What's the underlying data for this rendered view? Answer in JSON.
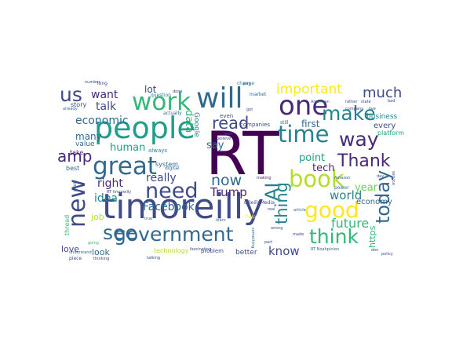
{
  "palette": [
    "#440154",
    "#482878",
    "#3e4a89",
    "#31688e",
    "#26828e",
    "#1f9e89",
    "#35b779",
    "#6ece58",
    "#b5de2b",
    "#fde725"
  ],
  "words": [
    {
      "text": "RT",
      "weight": 100,
      "color": "#440154"
    },
    {
      "text": "timoreilly",
      "weight": 72,
      "color": "#3e4a89"
    },
    {
      "text": "people",
      "weight": 62,
      "color": "#1f9e89"
    },
    {
      "text": "will",
      "weight": 55,
      "color": "#31688e"
    },
    {
      "text": "one",
      "weight": 55,
      "color": "#482878"
    },
    {
      "text": "work",
      "weight": 52,
      "color": "#35b779"
    },
    {
      "text": "new",
      "weight": 50,
      "color": "#3e4a89"
    },
    {
      "text": "great",
      "weight": 50,
      "color": "#31688e"
    },
    {
      "text": "time",
      "weight": 48,
      "color": "#26828e"
    },
    {
      "text": "book",
      "weight": 48,
      "color": "#b5de2b"
    },
    {
      "text": "good",
      "weight": 47,
      "color": "#fde725"
    },
    {
      "text": "need",
      "weight": 46,
      "color": "#3e4a89"
    },
    {
      "text": "government",
      "weight": 45,
      "color": "#31688e"
    },
    {
      "text": "see",
      "weight": 45,
      "color": "#31688e"
    },
    {
      "text": "make",
      "weight": 44,
      "color": "#26828e"
    },
    {
      "text": "way",
      "weight": 44,
      "color": "#482878"
    },
    {
      "text": "think",
      "weight": 43,
      "color": "#35b779"
    },
    {
      "text": "today",
      "weight": 42,
      "color": "#31688e"
    },
    {
      "text": "us",
      "weight": 40,
      "color": "#3e4a89"
    },
    {
      "text": "AI",
      "weight": 38,
      "color": "#26828e"
    },
    {
      "text": "thing",
      "weight": 36,
      "color": "#26828e"
    },
    {
      "text": "Thank",
      "weight": 36,
      "color": "#482878"
    },
    {
      "text": "read",
      "weight": 34,
      "color": "#3e4a89"
    },
    {
      "text": "amp",
      "weight": 34,
      "color": "#482878"
    },
    {
      "text": "important",
      "weight": 30,
      "color": "#fde725"
    },
    {
      "text": "much",
      "weight": 28,
      "color": "#3e4a89"
    },
    {
      "text": "now",
      "weight": 30,
      "color": "#31688e"
    },
    {
      "text": "Trump",
      "weight": 26,
      "color": "#482878"
    },
    {
      "text": "know",
      "weight": 25,
      "color": "#3e4a89"
    },
    {
      "text": "future",
      "weight": 24,
      "color": "#35b779"
    },
    {
      "text": "world",
      "weight": 24,
      "color": "#26828e"
    },
    {
      "text": "economic",
      "weight": 24,
      "color": "#31688e"
    },
    {
      "text": "want",
      "weight": 22,
      "color": "#482878"
    },
    {
      "text": "talk",
      "weight": 22,
      "color": "#3e4a89"
    },
    {
      "text": "right",
      "weight": 22,
      "color": "#482878"
    },
    {
      "text": "idea",
      "weight": 22,
      "color": "#26828e"
    },
    {
      "text": "Facebook",
      "weight": 22,
      "color": "#31688e"
    },
    {
      "text": "really",
      "weight": 22,
      "color": "#3e4a89"
    },
    {
      "text": "human",
      "weight": 20,
      "color": "#1f9e89"
    },
    {
      "text": "data",
      "weight": 20,
      "color": "#35b779"
    },
    {
      "text": "tech",
      "weight": 20,
      "color": "#482878"
    },
    {
      "text": "point",
      "weight": 20,
      "color": "#1f9e89"
    },
    {
      "text": "first",
      "weight": 18,
      "color": "#31688e"
    },
    {
      "text": "year",
      "weight": 18,
      "color": "#6ece58"
    },
    {
      "text": "say",
      "weight": 18,
      "color": "#31688e"
    },
    {
      "text": "lot",
      "weight": 18,
      "color": "#3e4a89"
    },
    {
      "text": "many",
      "weight": 16,
      "color": "#31688e"
    },
    {
      "text": "look",
      "weight": 16,
      "color": "#31688e"
    },
    {
      "text": "love",
      "weight": 16,
      "color": "#3e4a89"
    },
    {
      "text": "job",
      "weight": 16,
      "color": "#b5de2b"
    },
    {
      "text": "https",
      "weight": 16,
      "color": "#35b779"
    },
    {
      "text": "economy",
      "weight": 14,
      "color": "#31688e"
    },
    {
      "text": "every",
      "weight": 12,
      "color": "#3e4a89"
    },
    {
      "text": "business",
      "weight": 12,
      "color": "#26828e"
    },
    {
      "text": "technology",
      "weight": 12,
      "color": "#b5de2b"
    },
    {
      "text": "better",
      "weight": 12,
      "color": "#3e4a89"
    },
    {
      "text": "Google",
      "weight": 12,
      "color": "#26828e"
    },
    {
      "text": "system",
      "weight": 12,
      "color": "#31688e"
    },
    {
      "text": "value",
      "weight": 11,
      "color": "#31688e"
    },
    {
      "text": "story",
      "weight": 11,
      "color": "#3e4a89"
    },
    {
      "text": "take",
      "weight": 11,
      "color": "#482878"
    },
    {
      "text": "best",
      "weight": 11,
      "color": "#31688e"
    },
    {
      "text": "platform",
      "weight": 10,
      "color": "#1f9e89"
    },
    {
      "text": "problem",
      "weight": 10,
      "color": "#3e4a89"
    },
    {
      "text": "companies",
      "weight": 10,
      "color": "#3e4a89"
    },
    {
      "text": "even",
      "weight": 10,
      "color": "#3e4a89"
    },
    {
      "text": "thread",
      "weight": 10,
      "color": "#35b779"
    },
    {
      "text": "always",
      "weight": 10,
      "color": "#26828e"
    },
    {
      "text": "question",
      "weight": 9,
      "color": "#26828e"
    },
    {
      "text": "actually",
      "weight": 9,
      "color": "#31688e"
    },
    {
      "text": "still",
      "weight": 9,
      "color": "#31688e"
    },
    {
      "text": "long",
      "weight": 9,
      "color": "#3e4a89"
    },
    {
      "text": "piece",
      "weight": 9,
      "color": "#3e4a89"
    },
    {
      "text": "change",
      "weight": 9,
      "color": "#26828e"
    },
    {
      "text": "digital",
      "weight": 8,
      "color": "#31688e"
    },
    {
      "text": "fascinating",
      "weight": 8,
      "color": "#3e4a89"
    },
    {
      "text": "OReillyMedia",
      "weight": 8,
      "color": "#3e4a89"
    },
    {
      "text": "power",
      "weight": 8,
      "color": "#31688e"
    },
    {
      "text": "market",
      "weight": 8,
      "color": "#31688e"
    },
    {
      "text": "understand",
      "weight": 8,
      "color": "#31688e"
    },
    {
      "text": "going",
      "weight": 8,
      "color": "#35b779"
    },
    {
      "text": "thinking",
      "weight": 8,
      "color": "#3e4a89"
    },
    {
      "text": "help",
      "weight": 8,
      "color": "#fde725"
    },
    {
      "text": "rather",
      "weight": 8,
      "color": "#3e4a89"
    },
    {
      "text": "state",
      "weight": 8,
      "color": "#3e4a89"
    },
    {
      "text": "company",
      "weight": 8,
      "color": "#3e4a89"
    },
    {
      "text": "live",
      "weight": 8,
      "color": "#3e4a89"
    },
    {
      "text": "Amazon",
      "weight": 8,
      "color": "#31688e"
    },
    {
      "text": "article",
      "weight": 8,
      "color": "#31688e"
    },
    {
      "text": "done",
      "weight": 8,
      "color": "#3e4a89"
    },
    {
      "text": "made",
      "weight": 8,
      "color": "#3e4a89"
    },
    {
      "text": "something",
      "weight": 8,
      "color": "#31688e"
    },
    {
      "text": "American",
      "weight": 8,
      "color": "#31688e"
    },
    {
      "text": "making",
      "weight": 8,
      "color": "#482878"
    },
    {
      "text": "talking",
      "weight": 8,
      "color": "#3e4a89"
    },
    {
      "text": "true",
      "weight": 8,
      "color": "#31688e"
    },
    {
      "text": "learn",
      "weight": 8,
      "color": "#31688e"
    },
    {
      "text": "well",
      "weight": 8,
      "color": "#3e4a89"
    },
    {
      "text": "real",
      "weight": 8,
      "color": "#3e4a89"
    },
    {
      "text": "part",
      "weight": 8,
      "color": "#3e4a89"
    },
    {
      "text": "wrong",
      "weight": 8,
      "color": "#3e4a89"
    },
    {
      "text": "don",
      "weight": 8,
      "color": "#3e4a89"
    },
    {
      "text": "policy",
      "weight": 8,
      "color": "#3e4a89"
    },
    {
      "text": "service",
      "weight": 8,
      "color": "#3e4a89"
    },
    {
      "text": "RT timoreilly",
      "weight": 8,
      "color": "#3e4a89"
    },
    {
      "text": "RT Noahpinion",
      "weight": 8,
      "color": "#31688e"
    },
    {
      "text": "number",
      "weight": 7,
      "color": "#3e4a89"
    },
    {
      "text": "believe",
      "weight": 7,
      "color": "#3e4a89"
    },
    {
      "text": "already",
      "weight": 7,
      "color": "#31688e"
    },
    {
      "text": "pay",
      "weight": 7,
      "color": "#3e4a89"
    },
    {
      "text": "got",
      "weight": 7,
      "color": "#3e4a89"
    },
    {
      "text": "public",
      "weight": 7,
      "color": "#31688e"
    },
    {
      "text": "bad",
      "weight": 7,
      "color": "#3e4a89"
    },
    {
      "text": "day",
      "weight": 7,
      "color": "#3e4a89"
    }
  ]
}
